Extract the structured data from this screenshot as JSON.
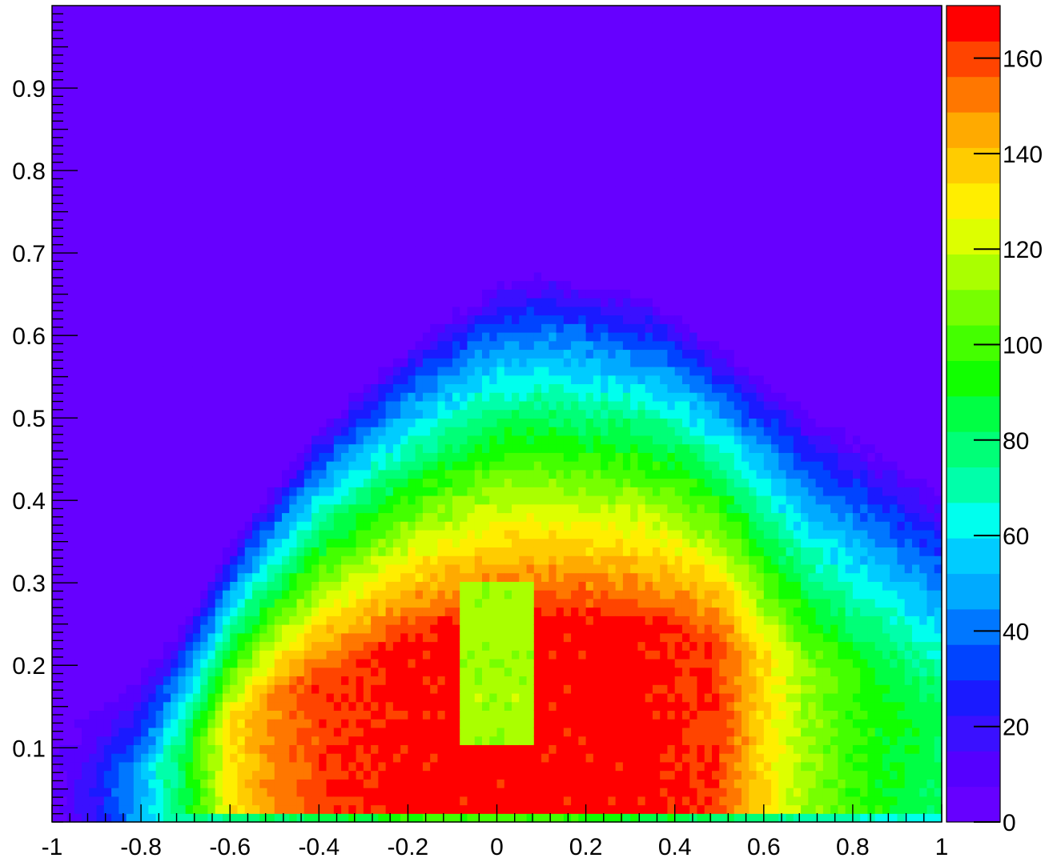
{
  "chart_data": {
    "type": "heatmap",
    "title": "",
    "xlabel": "",
    "ylabel": "",
    "xlim": [
      -1,
      1
    ],
    "ylim": [
      0.01,
      1.0
    ],
    "zlim": [
      0,
      171
    ],
    "x_ticks": [
      -1,
      -0.8,
      -0.6,
      -0.4,
      -0.2,
      0,
      0.2,
      0.4,
      0.6,
      0.8,
      1
    ],
    "x_tick_labels": [
      "-1",
      "-0.8",
      "-0.6",
      "-0.4",
      "-0.2",
      "0",
      "0.2",
      "0.4",
      "0.6",
      "0.8",
      "1"
    ],
    "y_ticks": [
      0.1,
      0.2,
      0.3,
      0.4,
      0.5,
      0.6,
      0.7,
      0.8,
      0.9
    ],
    "y_tick_labels": [
      "0.1",
      "0.2",
      "0.3",
      "0.4",
      "0.5",
      "0.6",
      "0.7",
      "0.8",
      "0.9"
    ],
    "z_ticks": [
      0,
      20,
      40,
      60,
      80,
      100,
      120,
      140,
      160
    ],
    "z_tick_labels": [
      "0",
      "20",
      "40",
      "60",
      "80",
      "100",
      "120",
      "140",
      "160"
    ],
    "palette": [
      "#6600ff",
      "#5500ff",
      "#3a10ff",
      "#1a1aff",
      "#0044ff",
      "#0077ff",
      "#00aaff",
      "#00ccff",
      "#00ffee",
      "#00ffaa",
      "#00ff77",
      "#00ff44",
      "#11ff00",
      "#44ff00",
      "#77ff00",
      "#aaff00",
      "#ddff00",
      "#ffee00",
      "#ffcc00",
      "#ffaa00",
      "#ff7700",
      "#ff4400",
      "#ff0000"
    ],
    "grid": false,
    "legend": "colorbar-right",
    "ridges": [
      {
        "x": -1.0,
        "top": 0.12,
        "a_max": 0.0
      },
      {
        "x": -0.9,
        "top": 0.15,
        "a_max": 0.12
      },
      {
        "x": -0.8,
        "top": 0.19,
        "a_max": 0.28
      },
      {
        "x": -0.7,
        "top": 0.26,
        "a_max": 0.5
      },
      {
        "x": -0.6,
        "top": 0.35,
        "a_max": 0.78
      },
      {
        "x": -0.5,
        "top": 0.42,
        "a_max": 0.9
      },
      {
        "x": -0.4,
        "top": 0.49,
        "a_max": 0.96
      },
      {
        "x": -0.3,
        "top": 0.54,
        "a_max": 0.98
      },
      {
        "x": -0.2,
        "top": 0.59,
        "a_max": 1.0
      },
      {
        "x": -0.1,
        "top": 0.63,
        "a_max": 1.0
      },
      {
        "x": 0.0,
        "top": 0.665,
        "a_max": 1.0
      },
      {
        "x": 0.1,
        "top": 0.675,
        "a_max": 1.0
      },
      {
        "x": 0.2,
        "top": 0.665,
        "a_max": 1.0
      },
      {
        "x": 0.3,
        "top": 0.655,
        "a_max": 1.0
      },
      {
        "x": 0.4,
        "top": 0.63,
        "a_max": 0.99
      },
      {
        "x": 0.5,
        "top": 0.59,
        "a_max": 0.96
      },
      {
        "x": 0.6,
        "top": 0.55,
        "a_max": 0.8
      },
      {
        "x": 0.7,
        "top": 0.51,
        "a_max": 0.66
      },
      {
        "x": 0.8,
        "top": 0.48,
        "a_max": 0.58
      },
      {
        "x": 0.9,
        "top": 0.45,
        "a_max": 0.52
      },
      {
        "x": 1.0,
        "top": 0.41,
        "a_max": 0.48
      }
    ],
    "central_gap": {
      "x_min": -0.08,
      "x_max": 0.08,
      "y_min": 0.1,
      "y_max": 0.3,
      "level": 0.68
    }
  }
}
